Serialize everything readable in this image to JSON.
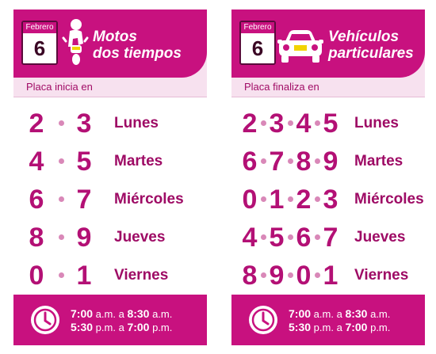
{
  "cards": [
    {
      "id": "motos",
      "calendar": {
        "month": "Febrero",
        "day": "6"
      },
      "title_line1": "Motos",
      "title_line2": "dos tiempos",
      "subtitle": "Placa inicia en",
      "rows": [
        {
          "digits": [
            "2",
            "3"
          ],
          "day": "Lunes"
        },
        {
          "digits": [
            "4",
            "5"
          ],
          "day": "Martes"
        },
        {
          "digits": [
            "6",
            "7"
          ],
          "day": "Miércoles"
        },
        {
          "digits": [
            "8",
            "9"
          ],
          "day": "Jueves"
        },
        {
          "digits": [
            "0",
            "1"
          ],
          "day": "Viernes"
        }
      ],
      "schedule": [
        {
          "start": "7:00",
          "start_unit": "a.m.",
          "sep": "a",
          "end": "8:30",
          "end_unit": "a.m."
        },
        {
          "start": "5:30",
          "start_unit": "p.m.",
          "sep": "a",
          "end": "7:00",
          "end_unit": "p.m."
        }
      ]
    },
    {
      "id": "autos",
      "calendar": {
        "month": "Febrero",
        "day": "6"
      },
      "title_line1": "Vehículos",
      "title_line2": "particulares",
      "subtitle": "Placa finaliza en",
      "rows": [
        {
          "digits": [
            "2",
            "3",
            "4",
            "5"
          ],
          "day": "Lunes"
        },
        {
          "digits": [
            "6",
            "7",
            "8",
            "9"
          ],
          "day": "Martes"
        },
        {
          "digits": [
            "0",
            "1",
            "2",
            "3"
          ],
          "day": "Miércoles"
        },
        {
          "digits": [
            "4",
            "5",
            "6",
            "7"
          ],
          "day": "Jueves"
        },
        {
          "digits": [
            "8",
            "9",
            "0",
            "1"
          ],
          "day": "Viernes"
        }
      ],
      "schedule": [
        {
          "start": "7:00",
          "start_unit": "a.m.",
          "sep": "a",
          "end": "8:30",
          "end_unit": "a.m."
        },
        {
          "start": "5:30",
          "start_unit": "p.m.",
          "sep": "a",
          "end": "7:00",
          "end_unit": "p.m."
        }
      ]
    }
  ],
  "colors": {
    "magenta": "#c8117f",
    "digit": "#b31075",
    "panel": "#f7e1ef"
  },
  "icons": [
    "motorcycle-icon",
    "car-icon",
    "clock-icon",
    "calendar-icon"
  ]
}
